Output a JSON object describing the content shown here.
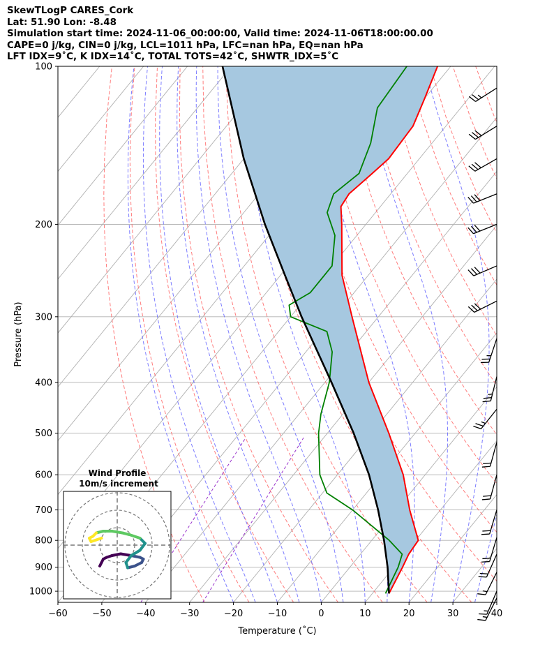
{
  "header": {
    "line1": "SkewTLogP CARES_Cork",
    "line2": "Lat: 51.90   Lon: -8.48",
    "line3": "Simulation start time: 2024-11-06_00:00:00, Valid time: 2024-11-06T18:00:00.00",
    "line4": "CAPE=0 j/kg, CIN=0 j/kg, LCL=1011 hPa, LFC=nan hPa, EQ=nan hPa",
    "line5": "LFT IDX=9˚C, K IDX=14˚C, TOTAL TOTS=42˚C, SHWTR_IDX=5˚C"
  },
  "chart_data": {
    "type": "line",
    "subtype": "skewt-logp",
    "xlabel": "Temperature (˚C)",
    "ylabel": "Pressure (hPa)",
    "xlim": [
      -60,
      40
    ],
    "ylim": [
      1050,
      100
    ],
    "y_scale": "log",
    "skew": true,
    "x_ticks": [
      -60,
      -50,
      -40,
      -30,
      -20,
      -10,
      0,
      10,
      20,
      30,
      40
    ],
    "y_ticks": [
      100,
      200,
      300,
      400,
      500,
      600,
      700,
      800,
      900,
      1000
    ],
    "grid": true,
    "series": [
      {
        "key": "temperature",
        "color": "#ff0000",
        "points": [
          {
            "p": 1010,
            "t": 13.8
          },
          {
            "p": 900,
            "t": 12.0
          },
          {
            "p": 850,
            "t": 11.0
          },
          {
            "p": 800,
            "t": 10.6
          },
          {
            "p": 700,
            "t": 3.0
          },
          {
            "p": 600,
            "t": -5.0
          },
          {
            "p": 500,
            "t": -16.0
          },
          {
            "p": 400,
            "t": -30.0
          },
          {
            "p": 300,
            "t": -46.0
          },
          {
            "p": 250,
            "t": -56.0
          },
          {
            "p": 200,
            "t": -65.5
          },
          {
            "p": 185,
            "t": -69.0
          },
          {
            "p": 175,
            "t": -69.5
          },
          {
            "p": 160,
            "t": -68.0
          },
          {
            "p": 150,
            "t": -67.0
          },
          {
            "p": 130,
            "t": -67.5
          },
          {
            "p": 115,
            "t": -70.0
          },
          {
            "p": 100,
            "t": -73.0
          }
        ]
      },
      {
        "key": "dewpoint",
        "color": "#008000",
        "points": [
          {
            "p": 1010,
            "t": 13.0
          },
          {
            "p": 900,
            "t": 11.0
          },
          {
            "p": 850,
            "t": 9.5
          },
          {
            "p": 800,
            "t": 4.0
          },
          {
            "p": 700,
            "t": -10.0
          },
          {
            "p": 650,
            "t": -19.0
          },
          {
            "p": 600,
            "t": -24.0
          },
          {
            "p": 500,
            "t": -32.0
          },
          {
            "p": 460,
            "t": -35.0
          },
          {
            "p": 400,
            "t": -39.0
          },
          {
            "p": 350,
            "t": -44.0
          },
          {
            "p": 320,
            "t": -49.0
          },
          {
            "p": 300,
            "t": -60.0
          },
          {
            "p": 285,
            "t": -62.5
          },
          {
            "p": 270,
            "t": -60.0
          },
          {
            "p": 240,
            "t": -60.0
          },
          {
            "p": 210,
            "t": -65.0
          },
          {
            "p": 190,
            "t": -71.0
          },
          {
            "p": 175,
            "t": -73.0
          },
          {
            "p": 160,
            "t": -71.0
          },
          {
            "p": 140,
            "t": -74.0
          },
          {
            "p": 120,
            "t": -79.0
          },
          {
            "p": 100,
            "t": -80.0
          }
        ]
      },
      {
        "key": "parcel",
        "color": "#000000",
        "points": [
          {
            "p": 1010,
            "t": 13.8
          },
          {
            "p": 900,
            "t": 8.6
          },
          {
            "p": 800,
            "t": 2.8
          },
          {
            "p": 700,
            "t": -4.2
          },
          {
            "p": 600,
            "t": -12.8
          },
          {
            "p": 500,
            "t": -24.0
          },
          {
            "p": 400,
            "t": -38.5
          },
          {
            "p": 300,
            "t": -57.5
          },
          {
            "p": 250,
            "t": -69.0
          },
          {
            "p": 200,
            "t": -83.0
          },
          {
            "p": 150,
            "t": -100.0
          },
          {
            "p": 100,
            "t": -122.0
          }
        ]
      }
    ],
    "shading": {
      "between": [
        "temperature",
        "parcel"
      ],
      "color": "#a6c8e0"
    },
    "reference_lines": {
      "isotherms_color": "#b0b0b0",
      "dry_adiabats_color": "#ff6666",
      "moist_adiabats_color": "#6666ff",
      "mixing_ratio_color": "#9933cc"
    },
    "wind_barbs": {
      "color": "#000000",
      "points": [
        {
          "p": 110,
          "u": -11,
          "v": -7
        },
        {
          "p": 130,
          "u": -13,
          "v": -8
        },
        {
          "p": 150,
          "u": -14,
          "v": -8
        },
        {
          "p": 175,
          "u": -15,
          "v": -6
        },
        {
          "p": 200,
          "u": -15,
          "v": -6
        },
        {
          "p": 240,
          "u": -14,
          "v": -6
        },
        {
          "p": 280,
          "u": -14,
          "v": -7
        },
        {
          "p": 330,
          "u": -4,
          "v": -12
        },
        {
          "p": 390,
          "u": -3,
          "v": -12
        },
        {
          "p": 450,
          "u": -8,
          "v": -10
        },
        {
          "p": 520,
          "u": -3,
          "v": -11
        },
        {
          "p": 600,
          "u": -3,
          "v": -11
        },
        {
          "p": 700,
          "u": -3,
          "v": -10
        },
        {
          "p": 790,
          "u": -3,
          "v": -10
        },
        {
          "p": 850,
          "u": -4,
          "v": -9
        },
        {
          "p": 920,
          "u": -4,
          "v": -8
        },
        {
          "p": 1000,
          "u": -3,
          "v": -7
        },
        {
          "p": 1030,
          "u": -3,
          "v": -6
        }
      ]
    },
    "hodograph": {
      "title": "Wind Profile",
      "subtitle": "10m/s increment",
      "colormap": [
        "#440154",
        "#3b528b",
        "#21918c",
        "#5ec962",
        "#fde725"
      ],
      "u": [
        -1.0,
        -0.9,
        -0.8,
        -0.6,
        -0.3,
        0.2,
        0.8,
        1.3,
        1.5,
        1.4,
        1.0,
        0.6,
        0.5,
        0.8,
        1.3,
        1.6,
        1.3,
        0.7,
        0.3,
        -0.3,
        -0.8,
        -1.2,
        -1.4,
        -1.6,
        -1.5,
        -1.2,
        -0.9
      ],
      "v": [
        -1.2,
        -1.0,
        -0.8,
        -0.7,
        -0.6,
        -0.5,
        -0.6,
        -0.7,
        -0.8,
        -1.0,
        -1.2,
        -1.3,
        -1.0,
        -0.6,
        -0.3,
        0.1,
        0.4,
        0.6,
        0.7,
        0.8,
        0.8,
        0.7,
        0.5,
        0.4,
        0.2,
        0.3,
        0.4
      ]
    }
  }
}
